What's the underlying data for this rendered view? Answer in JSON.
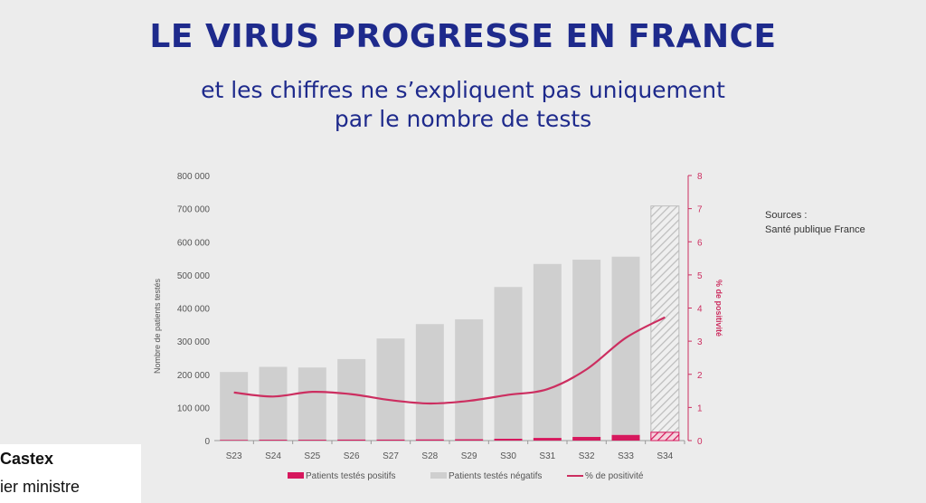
{
  "header": {
    "title": "LE VIRUS PROGRESSE EN FRANCE",
    "subtitle_line1": "et les chiffres ne s’expliquent pas uniquement",
    "subtitle_line2": "par le nombre de tests"
  },
  "sources": {
    "line1": "Sources :",
    "line2": "Santé publique France"
  },
  "caption": {
    "name": "Castex",
    "role": "ier ministre"
  },
  "colors": {
    "positifs": "#d6185d",
    "negatifs": "#cfcfcf",
    "line": "#cc2e60",
    "right_axis": "#cc2e60",
    "title": "#1e2a8c"
  },
  "chart_data": {
    "type": "bar",
    "stacked": true,
    "categories": [
      "S23",
      "S24",
      "S25",
      "S26",
      "S27",
      "S28",
      "S29",
      "S30",
      "S31",
      "S32",
      "S33",
      "S34"
    ],
    "series": [
      {
        "name": "Patients testés positifs",
        "axis": "left",
        "values": [
          2000,
          2500,
          2500,
          3000,
          3000,
          3500,
          4000,
          5500,
          8000,
          11000,
          17000,
          25000
        ]
      },
      {
        "name": "Patients testés négatifs",
        "axis": "left",
        "values": [
          205000,
          220000,
          218000,
          243000,
          305000,
          348000,
          362000,
          458000,
          525000,
          535000,
          538000,
          683000
        ]
      },
      {
        "name": "% de positivité",
        "type": "line",
        "axis": "right",
        "values": [
          1.45,
          1.33,
          1.47,
          1.4,
          1.22,
          1.12,
          1.2,
          1.38,
          1.55,
          2.15,
          3.1,
          3.72
        ]
      }
    ],
    "hatched_last_category": true,
    "ylabel": "Nombre de patients testés",
    "ylabel_right": "% de positivité",
    "ylim": [
      0,
      800000
    ],
    "ylim_right": [
      0,
      8
    ],
    "yticks": [
      0,
      100000,
      200000,
      300000,
      400000,
      500000,
      600000,
      700000,
      800000
    ],
    "ytick_labels": [
      "0",
      "100 000",
      "200 000",
      "300 000",
      "400 000",
      "500 000",
      "600 000",
      "700 000",
      "800 000"
    ],
    "yticks_right": [
      0,
      1,
      2,
      3,
      4,
      5,
      6,
      7,
      8
    ],
    "grid": false,
    "legend_position": "bottom"
  }
}
